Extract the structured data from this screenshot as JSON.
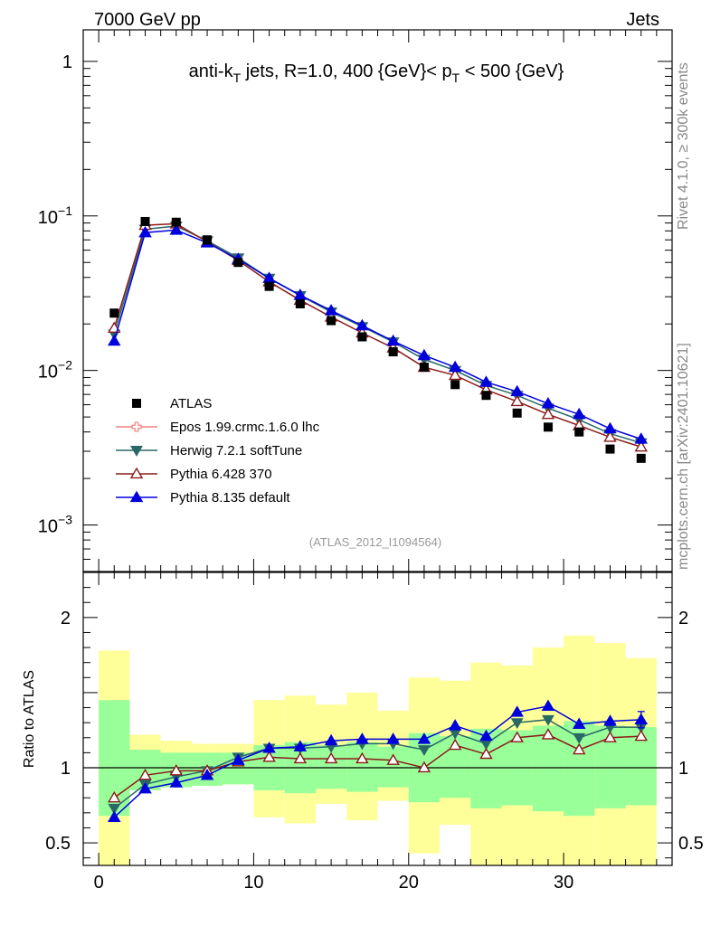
{
  "header": {
    "left": "7000 GeV pp",
    "right": "Jets",
    "rivet": "Rivet 4.1.0, ≥ 300k events",
    "mcplots": "mcplots.cern.ch [arXiv:2401.10621]",
    "analysis_id": "(ATLAS_2012_I1094564)"
  },
  "chart_data": {
    "type": "scatter",
    "title": "anti-kT jets, R=1.0, 400 {GeV}< pT < 500 {GeV}",
    "title_parts": {
      "prefix": "anti-k",
      "k_sub": "T",
      "middle": " jets, R=1.0, 400 {GeV}< p",
      "p_sub": "T",
      "suffix": " < 500 {GeV}"
    },
    "x": [
      1,
      3,
      5,
      7,
      9,
      11,
      13,
      15,
      17,
      19,
      21,
      23,
      25,
      27,
      29,
      31,
      33,
      35
    ],
    "xlim": [
      -1,
      37
    ],
    "x_ticks": [
      0,
      10,
      20,
      30
    ],
    "main": {
      "yscale": "log",
      "ylim": [
        0.0005,
        1.6
      ],
      "y_ticks": [
        {
          "value": 1,
          "base": "1",
          "exp": ""
        },
        {
          "value": 0.1,
          "base": "10",
          "exp": "−1"
        },
        {
          "value": 0.01,
          "base": "10",
          "exp": "−2"
        },
        {
          "value": 0.001,
          "base": "10",
          "exp": "−3"
        }
      ]
    },
    "ratio": {
      "ylabel": "Ratio to ATLAS",
      "ylim": [
        0.35,
        2.3
      ],
      "y_ticks": [
        {
          "value": 0.5,
          "label": "0.5"
        },
        {
          "value": 1,
          "label": "1"
        },
        {
          "value": 2,
          "label": "2"
        }
      ],
      "band_edges": [
        0,
        2,
        4,
        6,
        8,
        10,
        12,
        14,
        16,
        18,
        20,
        22,
        24,
        26,
        28,
        30,
        32,
        34,
        36
      ],
      "green_band": {
        "lo": [
          0.68,
          0.85,
          0.87,
          0.88,
          0.89,
          0.85,
          0.83,
          0.86,
          0.84,
          0.87,
          0.77,
          0.8,
          0.73,
          0.75,
          0.71,
          0.68,
          0.73,
          0.75
        ],
        "hi": [
          1.45,
          1.12,
          1.1,
          1.1,
          1.1,
          1.15,
          1.17,
          1.15,
          1.17,
          1.14,
          1.23,
          1.21,
          1.26,
          1.25,
          1.28,
          1.31,
          1.28,
          1.27
        ]
      },
      "yellow_band": {
        "lo": [
          0.3,
          0.85,
          0.87,
          0.88,
          0.89,
          0.67,
          0.63,
          0.76,
          0.65,
          0.78,
          0.43,
          0.62,
          0.3,
          0.3,
          0.3,
          0.3,
          0.3,
          0.3
        ],
        "hi": [
          1.78,
          1.22,
          1.18,
          1.16,
          1.16,
          1.45,
          1.48,
          1.42,
          1.5,
          1.38,
          1.6,
          1.58,
          1.7,
          1.68,
          1.8,
          1.88,
          1.83,
          1.73
        ]
      }
    },
    "series": [
      {
        "name": "ATLAS",
        "color": "#000000",
        "marker": "square",
        "values": [
          0.0235,
          0.092,
          0.091,
          0.07,
          0.05,
          0.035,
          0.027,
          0.021,
          0.0165,
          0.0132,
          0.0105,
          0.0081,
          0.0069,
          0.0053,
          0.0043,
          0.004,
          0.0031,
          0.0027
        ],
        "ratio": [
          1,
          1,
          1,
          1,
          1,
          1,
          1,
          1,
          1,
          1,
          1,
          1,
          1,
          1,
          1,
          1,
          1,
          1
        ]
      },
      {
        "name": "Epos 1.99.crmc.1.6.0 lhc",
        "color": "#f08080",
        "marker": "open-cross",
        "values": [],
        "ratio": []
      },
      {
        "name": "Herwig 7.2.1 softTune",
        "color": "#2a6868",
        "marker": "triangle-down",
        "values": [
          0.0172,
          0.082,
          0.086,
          0.069,
          0.0535,
          0.0395,
          0.0305,
          0.0239,
          0.0192,
          0.0153,
          0.0118,
          0.01,
          0.008,
          0.0069,
          0.0057,
          0.0048,
          0.0039,
          0.0034
        ],
        "ratio": [
          0.73,
          0.89,
          0.94,
          0.98,
          1.07,
          1.13,
          1.13,
          1.14,
          1.16,
          1.16,
          1.12,
          1.23,
          1.16,
          1.3,
          1.32,
          1.2,
          1.27,
          1.27
        ]
      },
      {
        "name": "Pythia 6.428 370",
        "color": "#8b1a1a",
        "marker": "open-triangle-up",
        "values": [
          0.0188,
          0.087,
          0.089,
          0.068,
          0.0515,
          0.0375,
          0.0285,
          0.0222,
          0.0175,
          0.014,
          0.0105,
          0.0093,
          0.0075,
          0.0063,
          0.0052,
          0.0044,
          0.0037,
          0.0032
        ],
        "ratio": [
          0.8,
          0.95,
          0.98,
          0.98,
          1.04,
          1.07,
          1.06,
          1.06,
          1.06,
          1.05,
          1.0,
          1.15,
          1.09,
          1.2,
          1.22,
          1.12,
          1.2,
          1.21
        ]
      },
      {
        "name": "Pythia 8.135 default",
        "color": "#0000dd",
        "marker": "triangle-up",
        "values": [
          0.0155,
          0.078,
          0.081,
          0.067,
          0.0525,
          0.0395,
          0.0307,
          0.0244,
          0.0195,
          0.0155,
          0.0125,
          0.0105,
          0.0084,
          0.0073,
          0.0061,
          0.0052,
          0.0042,
          0.0036
        ],
        "ratio": [
          0.67,
          0.86,
          0.9,
          0.95,
          1.05,
          1.13,
          1.14,
          1.18,
          1.19,
          1.19,
          1.19,
          1.28,
          1.21,
          1.37,
          1.41,
          1.29,
          1.31,
          1.32
        ]
      }
    ],
    "legend": {
      "placement": "lower-left",
      "entries": [
        "ATLAS",
        "Epos 1.99.crmc.1.6.0 lhc",
        "Herwig 7.2.1 softTune",
        "Pythia 6.428 370",
        "Pythia 8.135 default"
      ]
    }
  }
}
